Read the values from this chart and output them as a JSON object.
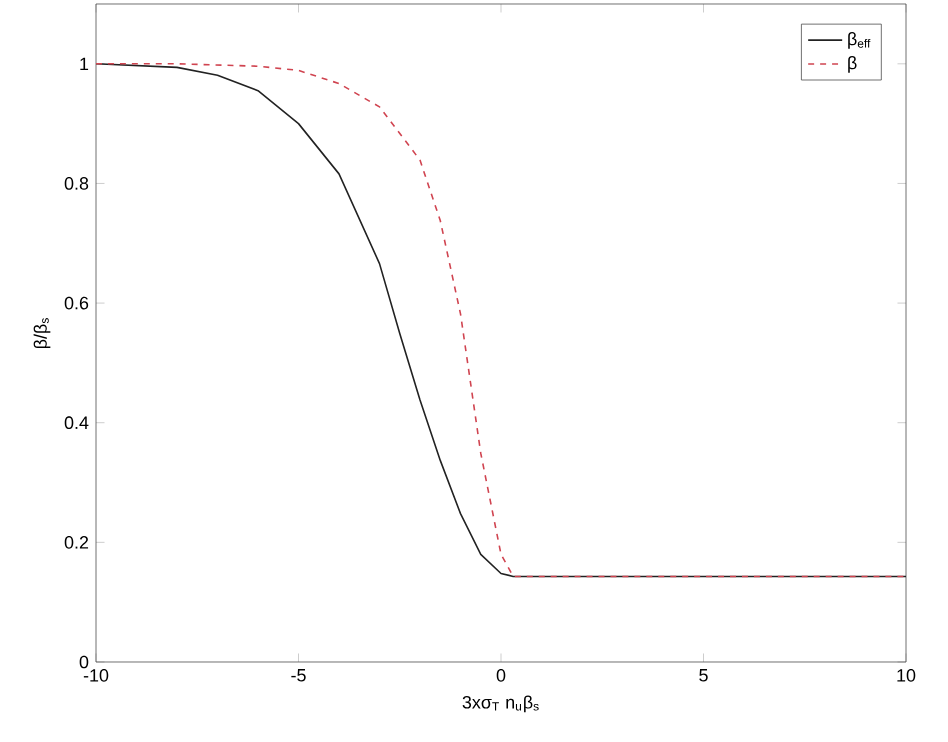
{
  "chart_data": {
    "type": "line",
    "xlabel": "3xσ$_{T}$ n$_{u}$β$_{s}$",
    "ylabel": "β/β$_{s}$",
    "xlim": [
      -10,
      10
    ],
    "xticks": [
      -10,
      -5,
      0,
      5,
      10
    ],
    "ylim": [
      0,
      1.1
    ],
    "yticks": [
      0,
      0.2,
      0.4,
      0.6,
      0.8,
      1
    ],
    "legend": "top right",
    "grid": false,
    "series": [
      {
        "name": "β$_{eff}$",
        "color": "#222222",
        "line_style": "solid",
        "x": [
          -10,
          -8,
          -7,
          -6,
          -5,
          -4,
          -3,
          -2.5,
          -2,
          -1.5,
          -1,
          -0.5,
          0,
          0.3,
          10
        ],
        "values": [
          1,
          0.994,
          0.981,
          0.955,
          0.9,
          0.816,
          0.666,
          0.549,
          0.438,
          0.337,
          0.248,
          0.18,
          0.148,
          0.143,
          0.143
        ]
      },
      {
        "name": "β",
        "color": "#d04450",
        "line_style": "dashed",
        "x": [
          -10,
          -8,
          -6,
          -5,
          -4,
          -3,
          -2,
          -1.5,
          -1,
          -0.5,
          0,
          0.3,
          10
        ],
        "values": [
          1,
          1,
          0.996,
          0.989,
          0.967,
          0.928,
          0.839,
          0.738,
          0.582,
          0.349,
          0.18,
          0.143,
          0.143
        ]
      }
    ]
  }
}
